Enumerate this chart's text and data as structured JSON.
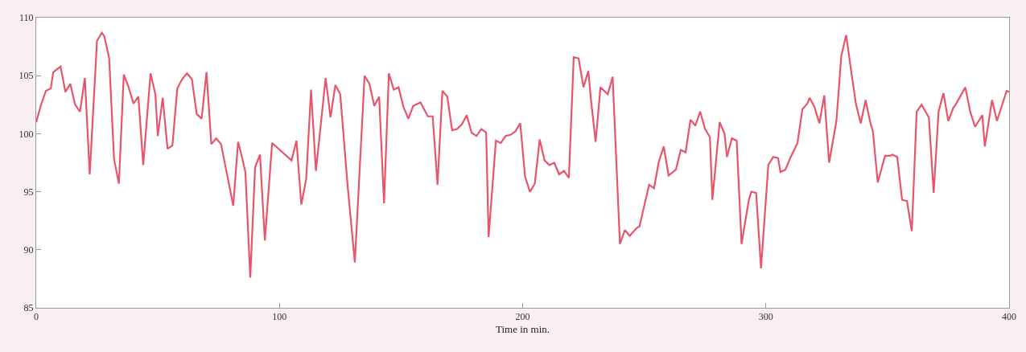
{
  "chart_data": {
    "type": "line",
    "xlabel": "Time in min.",
    "xlim": [
      0,
      400
    ],
    "xticks": [
      0,
      100,
      200,
      300,
      400
    ],
    "ylim": [
      85,
      110
    ],
    "yticks": [
      85,
      90,
      95,
      100,
      105,
      110
    ],
    "grid": false,
    "marker": "none",
    "line_style": "solid",
    "series": [
      {
        "color": "#e8556a",
        "x": [
          0,
          2,
          4,
          6,
          7,
          10,
          12,
          14,
          16,
          18,
          20,
          22,
          25,
          27,
          28,
          30,
          32,
          34,
          36,
          38,
          40,
          42,
          44,
          47,
          49,
          50,
          52,
          54,
          56,
          58,
          60,
          62,
          64,
          66,
          68,
          70,
          72,
          74,
          76,
          81,
          83,
          84,
          86,
          88,
          90,
          92,
          94,
          97,
          105,
          107,
          109,
          111,
          113,
          115,
          119,
          121,
          123,
          125,
          128,
          131,
          135,
          137,
          139,
          141,
          143,
          145,
          147,
          149,
          151,
          153,
          155,
          158,
          161,
          163,
          165,
          167,
          169,
          171,
          173,
          175,
          177,
          179,
          181,
          183,
          185,
          186,
          189,
          191,
          193,
          195,
          197,
          199,
          201,
          203,
          205,
          207,
          209,
          211,
          213,
          215,
          217,
          219,
          221,
          223,
          225,
          227,
          228,
          230,
          232,
          235,
          237,
          240,
          242,
          244,
          247,
          248,
          252,
          254,
          256,
          258,
          260,
          263,
          265,
          267,
          269,
          271,
          273,
          275,
          277,
          278,
          281,
          283,
          284,
          286,
          288,
          290,
          293,
          294,
          296,
          298,
          301,
          303,
          305,
          306,
          308,
          310,
          313,
          315,
          317,
          318,
          320,
          322,
          324,
          326,
          329,
          331,
          333,
          335,
          337,
          339,
          341,
          343,
          344,
          346,
          349,
          351,
          352,
          354,
          356,
          358,
          360,
          362,
          364,
          367,
          369,
          371,
          373,
          375,
          377,
          378,
          382,
          384,
          386,
          389,
          390,
          393,
          395,
          399,
          400
        ],
        "values": [
          101,
          102.5,
          103.7,
          103.9,
          105.3,
          105.8,
          103.6,
          104.3,
          102.5,
          101.9,
          104.8,
          96.5,
          108,
          108.7,
          108.4,
          106.5,
          97.8,
          95.7,
          105.1,
          104,
          102.6,
          103.2,
          97.3,
          105.2,
          103.4,
          99.8,
          103.1,
          98.7,
          99,
          103.9,
          104.7,
          105.2,
          104.7,
          101.7,
          101.3,
          105.3,
          99.1,
          99.6,
          99.1,
          93.8,
          99.3,
          98.5,
          96.7,
          87.6,
          97.1,
          98.2,
          90.8,
          99.2,
          97.7,
          99.4,
          93.9,
          96.1,
          103.8,
          96.8,
          104.8,
          101.4,
          104.2,
          103.4,
          95.6,
          88.9,
          105,
          104.3,
          102.4,
          103.2,
          94,
          105.2,
          103.8,
          104,
          102.3,
          101.3,
          102.4,
          102.7,
          101.5,
          101.5,
          95.6,
          103.7,
          103.2,
          100.3,
          100.4,
          100.8,
          101.6,
          100.1,
          99.8,
          100.4,
          100.1,
          91.1,
          99.4,
          99.2,
          99.8,
          99.9,
          100.2,
          100.9,
          96.3,
          95,
          95.7,
          99.5,
          97.7,
          97.3,
          97.5,
          96.5,
          96.8,
          96.2,
          106.6,
          106.5,
          104,
          105.4,
          103.1,
          99.3,
          104,
          103.4,
          104.9,
          90.5,
          91.7,
          91.2,
          91.9,
          92,
          95.6,
          95.3,
          97.6,
          98.9,
          96.4,
          96.9,
          98.6,
          98.4,
          101.2,
          100.7,
          101.9,
          100.4,
          99.7,
          94.3,
          101,
          100,
          98,
          99.6,
          99.4,
          90.5,
          94.3,
          95,
          94.9,
          88.4,
          97.3,
          98,
          97.9,
          96.7,
          96.9,
          97.9,
          99.2,
          102.1,
          102.6,
          103.1,
          102.3,
          100.9,
          103.3,
          97.5,
          101.1,
          106.7,
          108.5,
          105.5,
          102.6,
          100.9,
          102.9,
          100.9,
          100.2,
          95.8,
          98.1,
          98.1,
          98.2,
          98,
          94.3,
          94.2,
          91.6,
          101.9,
          102.5,
          101.4,
          94.9,
          101.9,
          103.5,
          101.1,
          102.2,
          102.5,
          104,
          101.9,
          100.6,
          101.6,
          98.9,
          102.9,
          101.1,
          103.7,
          103.6
        ]
      }
    ]
  }
}
